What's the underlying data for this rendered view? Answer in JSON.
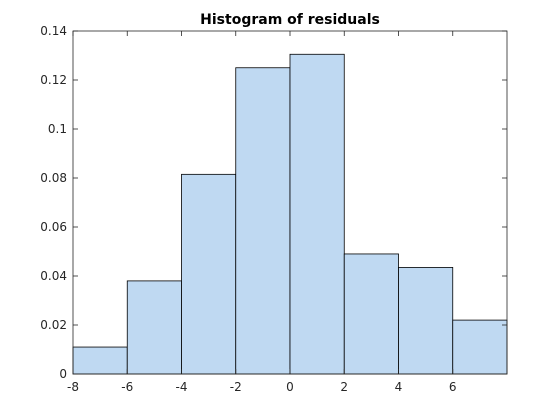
{
  "chart_data": {
    "type": "bar",
    "title": "Histogram of residuals",
    "xlabel": "",
    "ylabel": "",
    "xlim": [
      -8,
      8
    ],
    "ylim": [
      0,
      0.14
    ],
    "grid": false,
    "bar_color": "#bfd9f2",
    "edge_color": "#000000",
    "bin_edges": [
      -8,
      -6,
      -4,
      -2,
      0,
      2,
      4,
      6,
      8
    ],
    "values": [
      0.011,
      0.038,
      0.0815,
      0.125,
      0.1305,
      0.049,
      0.0435,
      0.022
    ],
    "x_ticks": [
      -8,
      -6,
      -4,
      -2,
      0,
      2,
      4,
      6
    ],
    "x_tick_labels": [
      "-8",
      "-6",
      "-4",
      "-2",
      "0",
      "2",
      "4",
      "6"
    ],
    "y_ticks": [
      0,
      0.02,
      0.04,
      0.06,
      0.08,
      0.1,
      0.12,
      0.14
    ],
    "y_tick_labels": [
      "0",
      "0.02",
      "0.04",
      "0.06",
      "0.08",
      "0.1",
      "0.12",
      "0.14"
    ]
  }
}
